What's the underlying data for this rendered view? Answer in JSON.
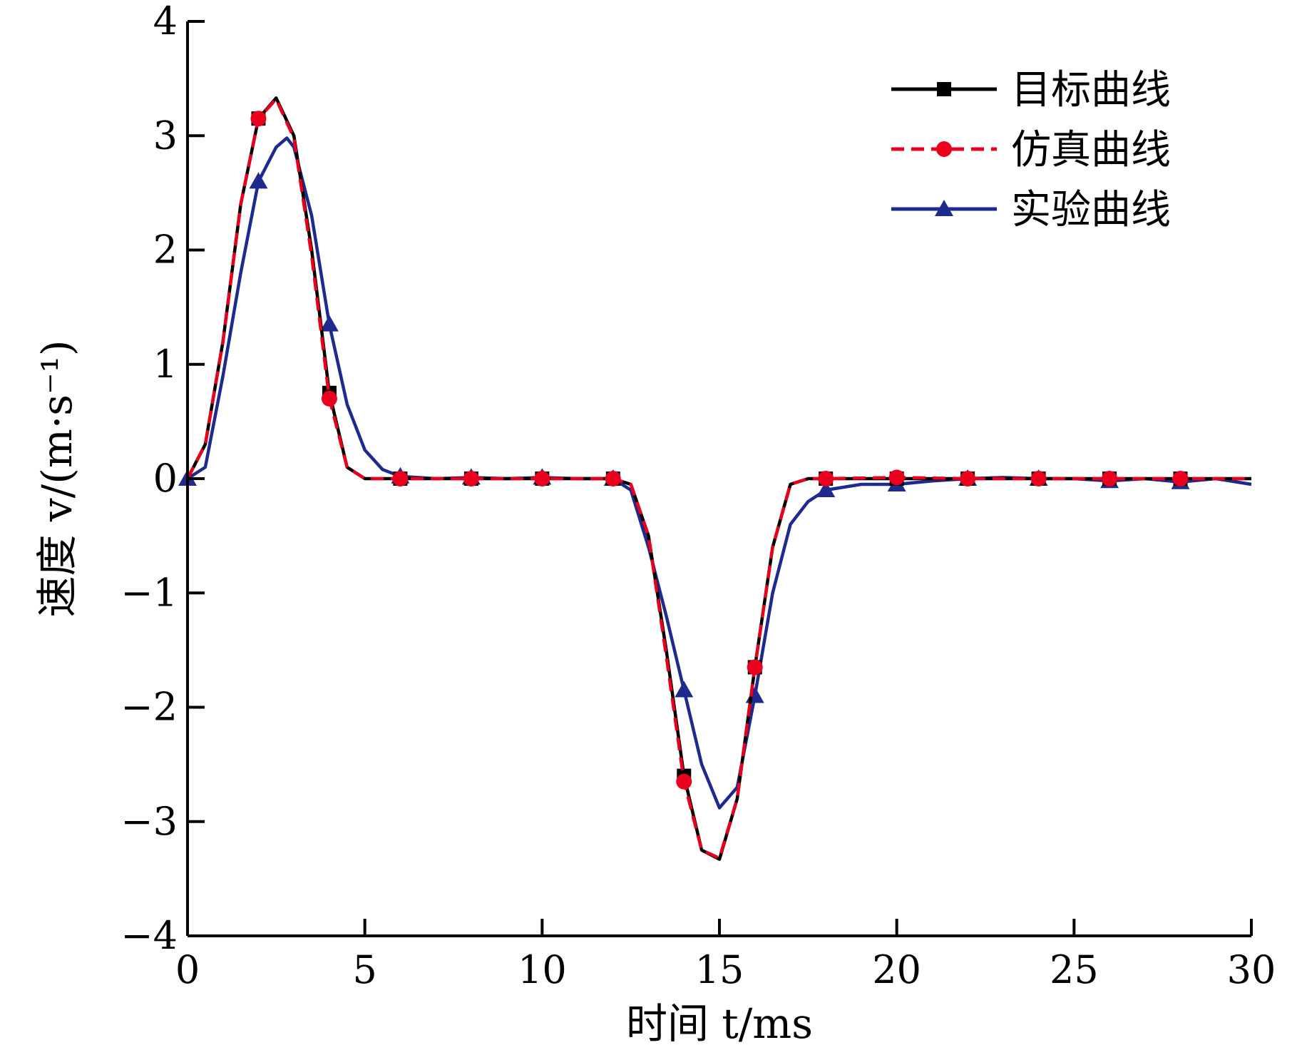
{
  "chart_data": {
    "type": "line",
    "xlabel": "时间 t/ms",
    "ylabel": "速度 v/(m·s⁻¹)",
    "xlim": [
      0,
      30
    ],
    "ylim": [
      -4,
      4
    ],
    "x_ticks": [
      "0",
      "5",
      "10",
      "15",
      "20",
      "25",
      "30"
    ],
    "y_ticks": [
      "−4",
      "−3",
      "−2",
      "−1",
      "0",
      "1",
      "2",
      "3",
      "4"
    ],
    "grid": false,
    "legend_position": "top-right",
    "series": [
      {
        "name": "目标曲线",
        "color": "#000000",
        "line_style": "solid",
        "marker": "square",
        "x": [
          0,
          0.5,
          1.0,
          1.5,
          2.0,
          2.5,
          3.0,
          3.5,
          4.0,
          4.5,
          5.0,
          6,
          8,
          10,
          12,
          12.5,
          13.0,
          13.5,
          14.0,
          14.5,
          15.0,
          15.5,
          16.0,
          16.5,
          17.0,
          17.5,
          18,
          20,
          22,
          24,
          26,
          28,
          30
        ],
        "y": [
          0,
          0.3,
          1.2,
          2.4,
          3.15,
          3.33,
          3.0,
          2.0,
          0.75,
          0.1,
          0,
          0,
          0,
          0,
          0,
          -0.05,
          -0.5,
          -1.5,
          -2.6,
          -3.25,
          -3.33,
          -2.8,
          -1.65,
          -0.6,
          -0.05,
          0,
          0,
          0,
          0,
          0,
          0,
          0,
          0
        ],
        "marker_x": [
          2,
          4,
          6,
          8,
          10,
          12,
          14,
          16,
          18,
          20,
          22,
          24,
          26,
          28
        ]
      },
      {
        "name": "仿真曲线",
        "color": "#e8001c",
        "line_style": "dashed",
        "marker": "circle",
        "x": [
          0,
          0.5,
          1.0,
          1.5,
          2.0,
          2.5,
          3.0,
          3.5,
          4.0,
          4.5,
          5.0,
          6,
          8,
          10,
          12,
          12.5,
          13.0,
          13.5,
          14.0,
          14.5,
          15.0,
          15.5,
          16.0,
          16.5,
          17.0,
          17.5,
          18,
          20,
          22,
          24,
          26,
          28,
          30
        ],
        "y": [
          0,
          0.3,
          1.2,
          2.4,
          3.15,
          3.32,
          2.98,
          1.95,
          0.7,
          0.1,
          0,
          0,
          0,
          0,
          0,
          -0.05,
          -0.5,
          -1.55,
          -2.65,
          -3.25,
          -3.32,
          -2.8,
          -1.65,
          -0.6,
          -0.05,
          0,
          0,
          0.01,
          0,
          0,
          0,
          0,
          0
        ],
        "marker_x": [
          2,
          4,
          6,
          8,
          10,
          12,
          14,
          16,
          18,
          20,
          22,
          24,
          26,
          28
        ]
      },
      {
        "name": "实验曲线",
        "color": "#1f2a8f",
        "line_style": "solid",
        "marker": "triangle",
        "x": [
          0,
          0.5,
          1.0,
          1.5,
          2.0,
          2.5,
          2.8,
          3.0,
          3.5,
          4.0,
          4.5,
          5.0,
          5.5,
          6,
          7,
          8,
          9,
          10,
          11,
          12,
          12.5,
          13.0,
          13.5,
          14.0,
          14.5,
          15.0,
          15.5,
          16.0,
          16.5,
          17.0,
          17.5,
          18,
          19,
          20,
          21,
          22,
          23,
          24,
          25,
          26,
          27,
          28,
          29,
          30
        ],
        "y": [
          0,
          0.1,
          0.9,
          1.8,
          2.6,
          2.9,
          2.98,
          2.9,
          2.3,
          1.35,
          0.65,
          0.25,
          0.08,
          0.02,
          0,
          0.01,
          0,
          0.01,
          0,
          0,
          -0.1,
          -0.6,
          -1.2,
          -1.85,
          -2.5,
          -2.88,
          -2.7,
          -1.9,
          -1.0,
          -0.4,
          -0.2,
          -0.1,
          -0.05,
          -0.05,
          -0.02,
          0,
          0.01,
          0,
          0,
          -0.02,
          0,
          -0.03,
          0,
          -0.05
        ],
        "marker_x": [
          0,
          2,
          4,
          6,
          8,
          10,
          12,
          14,
          16,
          18,
          20,
          22,
          24,
          26,
          28
        ]
      }
    ]
  }
}
